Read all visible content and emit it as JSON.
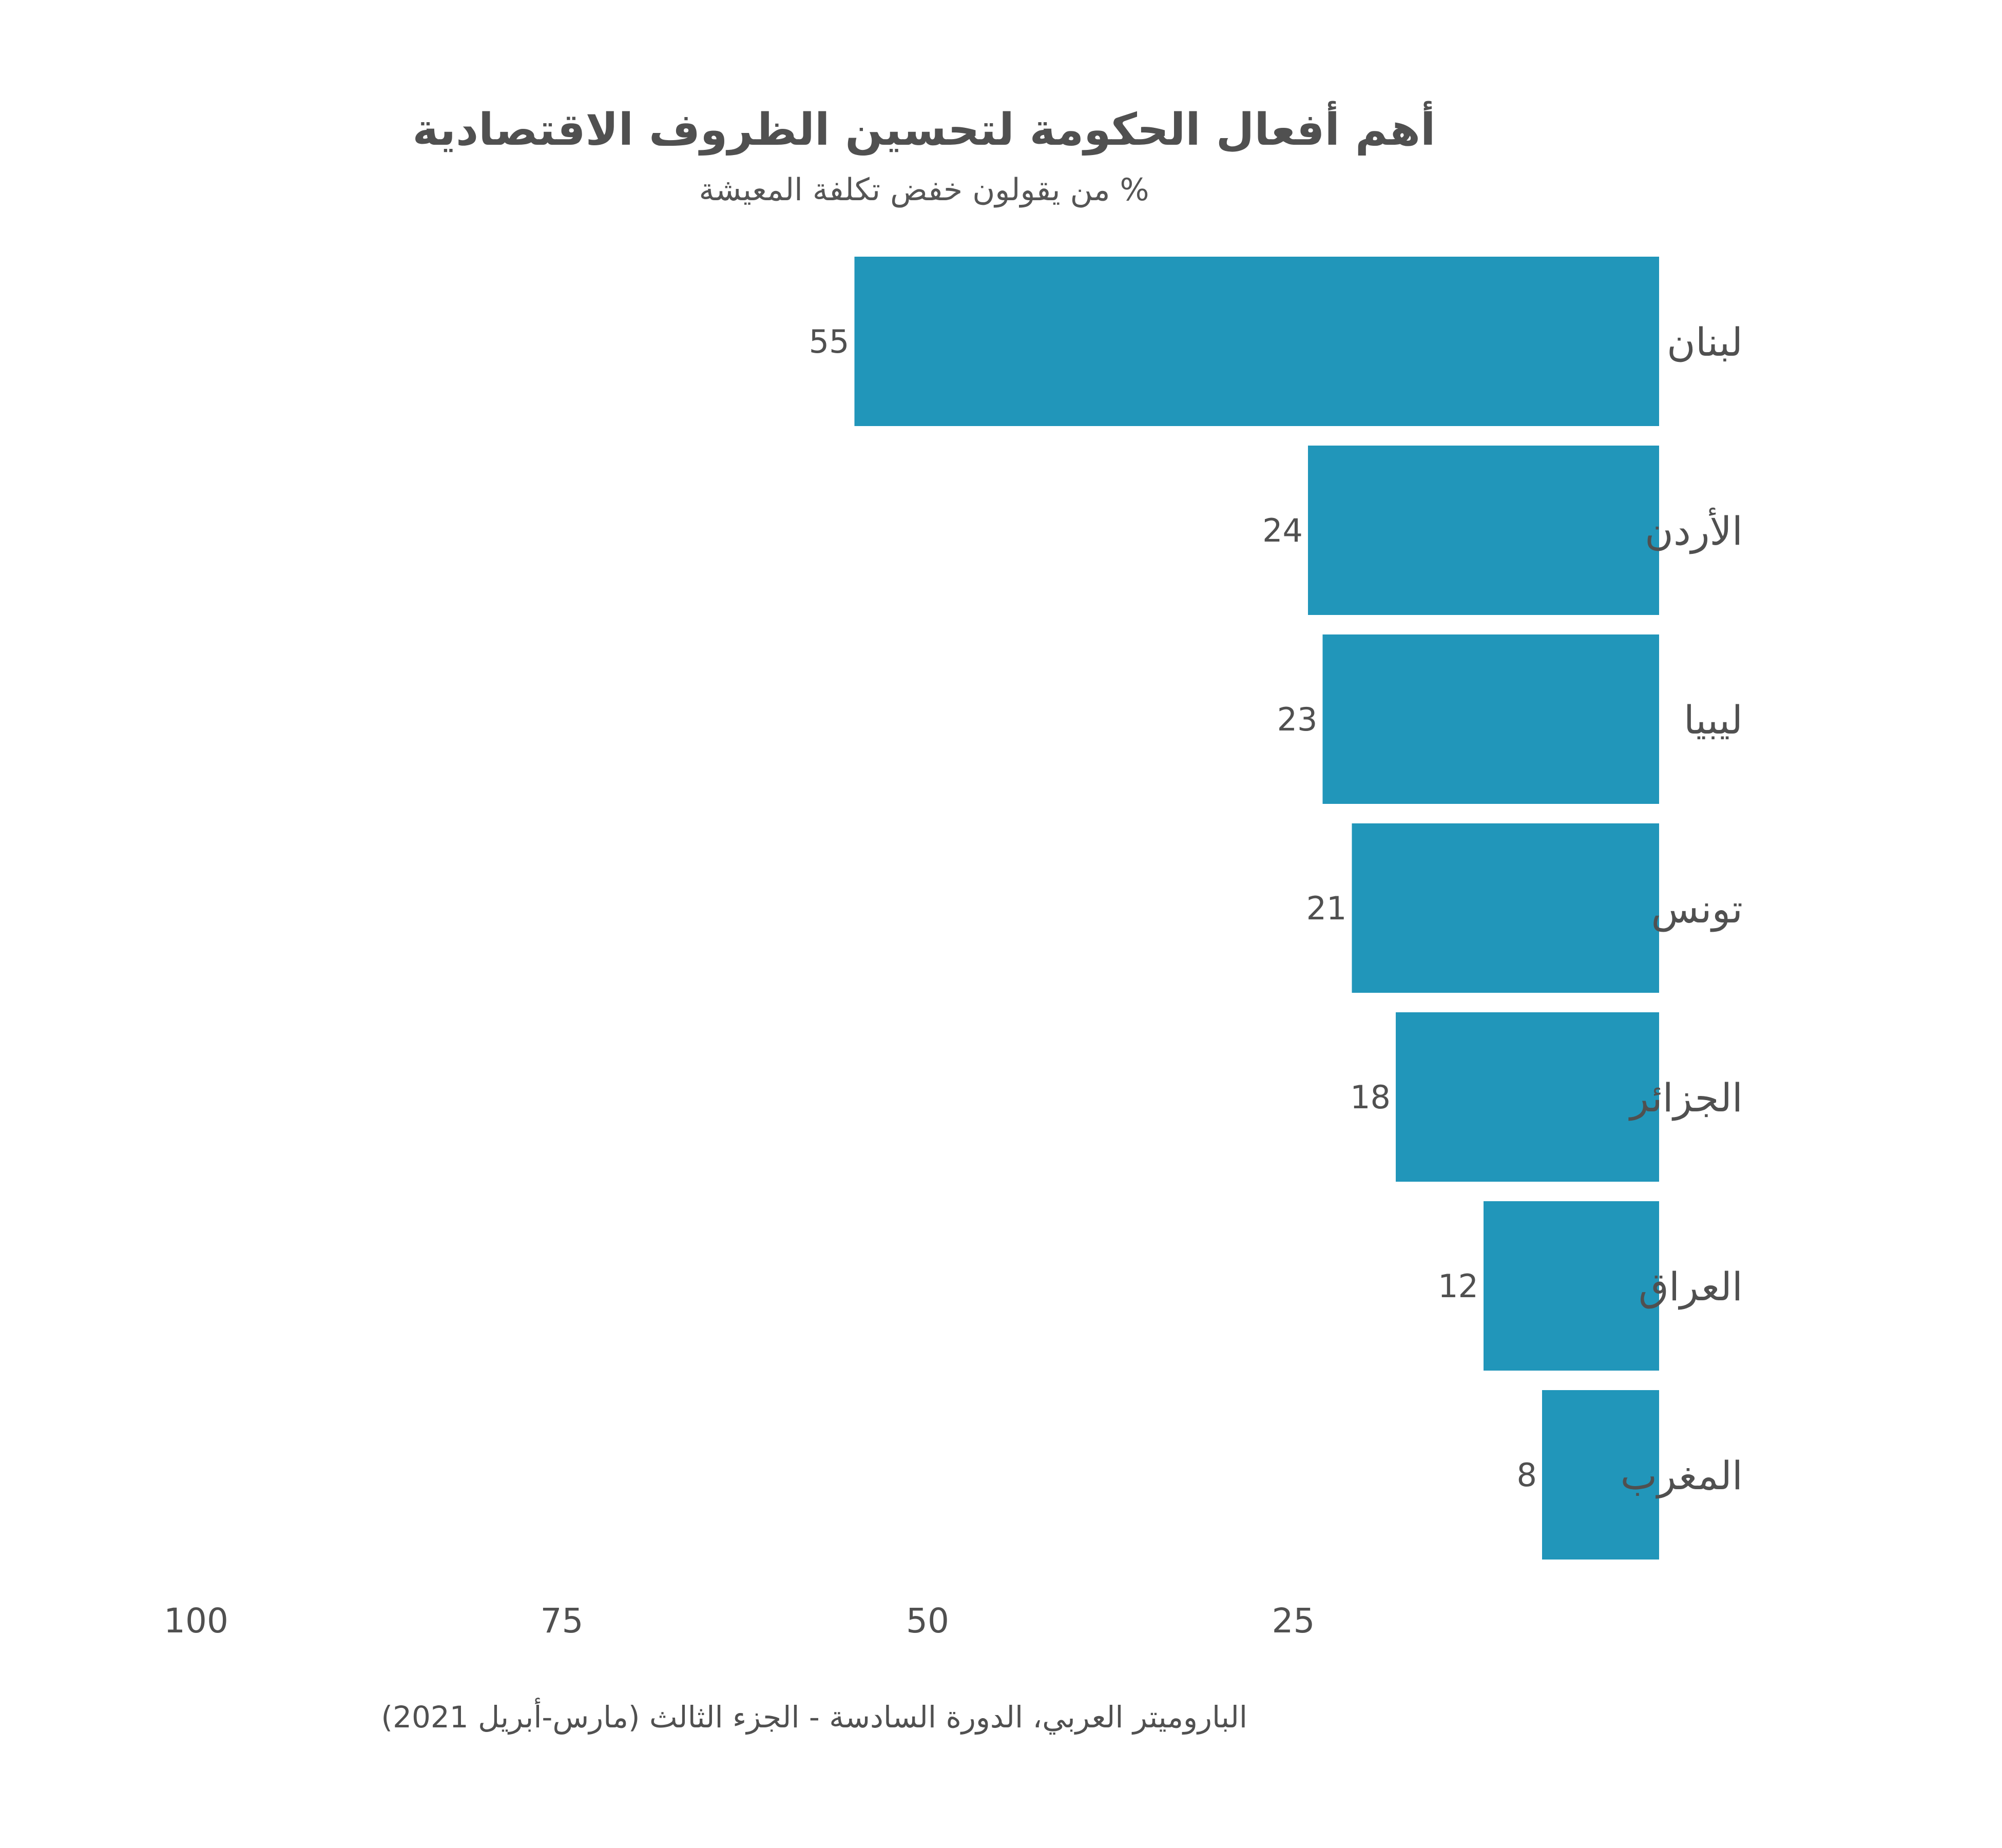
{
  "chart_data": {
    "type": "bar",
    "orientation": "horizontal",
    "direction": "right-to-left",
    "title": "أهم أفعال الحكومة لتحسين الظروف الاقتصادية",
    "subtitle": "% من يقولون خفض تكلفة المعيشة",
    "categories": [
      "لبنان",
      "الأردن",
      "ليبيا",
      "تونس",
      "الجزائر",
      "العراق",
      "المغرب"
    ],
    "values": [
      55,
      24,
      23,
      21,
      18,
      12,
      8
    ],
    "xlim": [
      0,
      100
    ],
    "x_ticks": [
      100,
      75,
      50,
      25
    ],
    "grid": false,
    "legend": "none",
    "bar_color": "#2196BA",
    "source": "الباروميتر العربي، الدورة السادسة - الجزء الثالث (مارس-أبريل 2021)"
  }
}
